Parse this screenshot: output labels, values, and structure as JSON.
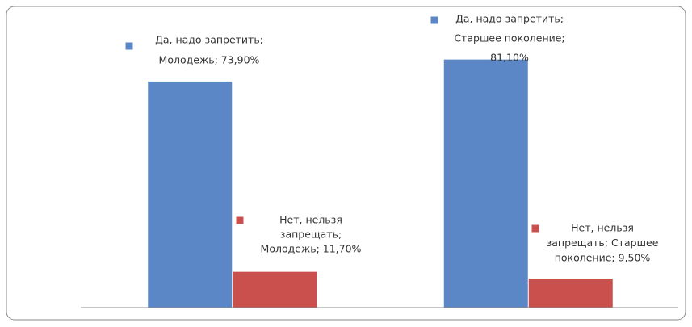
{
  "chart_data": {
    "type": "bar",
    "series": [
      {
        "color": "#5b87c6",
        "values": [
          73.9,
          81.1
        ],
        "value_labels": [
          [
            "Да, надо запретить;",
            "Молодежь; 73,90%"
          ],
          [
            "Да, надо запретить;",
            "Старшее поколение;",
            "81,10%"
          ]
        ]
      },
      {
        "color": "#c9504d",
        "values": [
          11.7,
          9.5
        ],
        "value_labels": [
          [
            "Нет, нельзя",
            "запрещать;",
            "Молодежь; 11,70%"
          ],
          [
            "Нет, нельзя",
            "запрещать; Старшее",
            "поколение; 9,50%"
          ]
        ]
      }
    ],
    "ylim": [
      0,
      100
    ]
  }
}
